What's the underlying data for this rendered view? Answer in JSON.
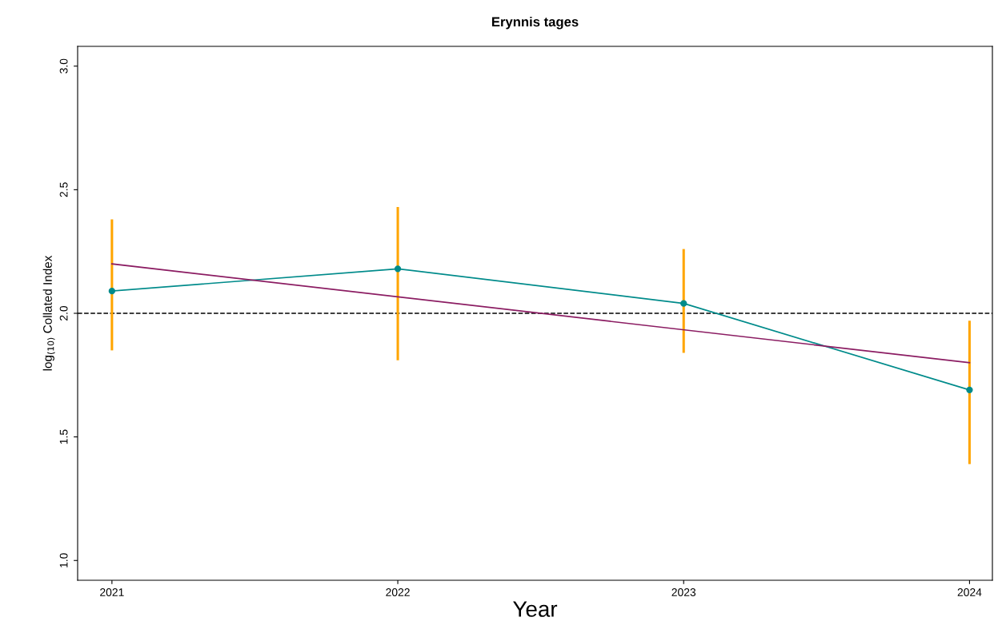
{
  "chart_data": {
    "type": "line",
    "title": "Erynnis tages",
    "xlabel": "Year",
    "ylabel": "log$_{(10)}$ Collated Index",
    "x": [
      2021,
      2022,
      2023,
      2024
    ],
    "xlim": [
      2020.88,
      2024.08
    ],
    "xticks": [
      2021,
      2022,
      2023,
      2024
    ],
    "ylim": [
      0.92,
      3.08
    ],
    "yticks": [
      {
        "value": 1.0,
        "label": "1.0"
      },
      {
        "value": 1.5,
        "label": "1.5"
      },
      {
        "value": 2.0,
        "label": "2.0"
      },
      {
        "value": 2.5,
        "label": "2.5"
      },
      {
        "value": 3.0,
        "label": "3.0"
      }
    ],
    "series": [
      {
        "color": "#008b8b",
        "values": [
          2.09,
          2.18,
          2.04,
          1.69
        ],
        "marker": "circle",
        "errors": [
          [
            1.85,
            2.38
          ],
          [
            1.81,
            2.43
          ],
          [
            1.84,
            2.26
          ],
          [
            1.39,
            1.97
          ]
        ]
      },
      {
        "type": "line",
        "color": "#8b1c62",
        "x": [
          2021,
          2024
        ],
        "values": [
          2.2,
          1.8
        ],
        "marker": "none"
      }
    ],
    "ref_lines": [
      {
        "axis": "y",
        "value": 2.0,
        "label": null,
        "color": "#000000",
        "line_style": "dashed"
      }
    ],
    "grid": false,
    "legend": false
  }
}
